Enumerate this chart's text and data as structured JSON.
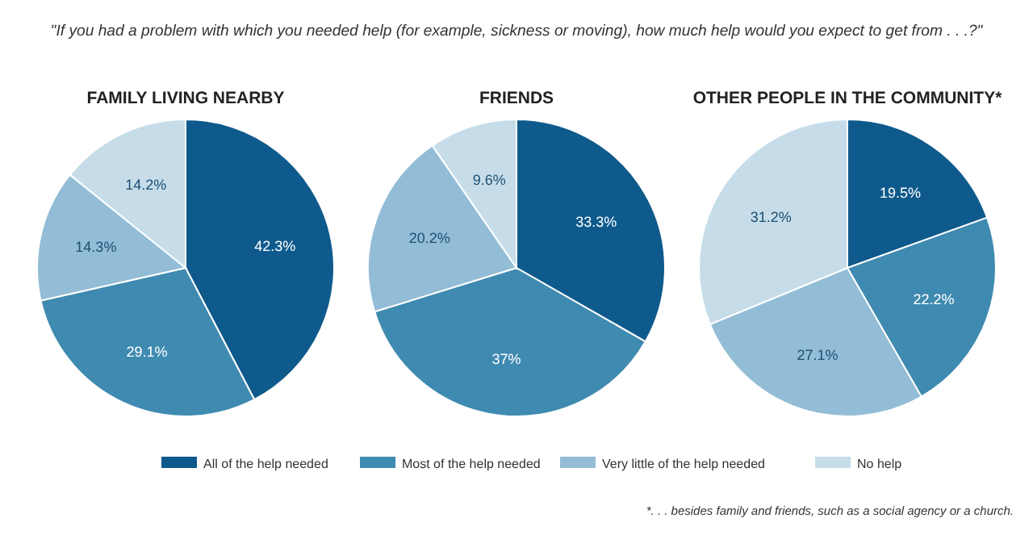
{
  "chart_data": [
    {
      "type": "pie",
      "title": "FAMILY LIVING NEARBY",
      "annotations": [
        "\"If you had a problem with which you needed help (for example, sickness or moving), how much help would you expect to get from . . .?\""
      ],
      "categories": [
        "All of the help needed",
        "Most of the help needed",
        "Very little of the help needed",
        "No help"
      ],
      "values": [
        42.3,
        29.1,
        14.3,
        14.2
      ],
      "value_labels": [
        "42.3%",
        "29.1%",
        "14.3%",
        "14.2%"
      ],
      "colors": [
        "#0f5a8c",
        "#3f8ab0",
        "#93bdd6",
        "#c6dde9"
      ],
      "legend": "bottom"
    },
    {
      "type": "pie",
      "title": "FRIENDS",
      "categories": [
        null,
        null,
        null,
        null
      ],
      "values": [
        33.3,
        37,
        20.2,
        9.6
      ],
      "value_labels": [
        "33.3%",
        "37%",
        "20.2%",
        "9.6%"
      ],
      "colors": [
        "#0f5a8c",
        "#3f8ab0",
        "#93bdd6",
        "#c6dde9"
      ]
    },
    {
      "type": "pie",
      "title": "OTHER PEOPLE IN THE COMMUNITY*",
      "annotations": [
        "*. . . besides family and friends, such as a social agency or a church."
      ],
      "categories": [
        null,
        null,
        null,
        null
      ],
      "values": [
        19.5,
        22.2,
        27.1,
        31.2
      ],
      "value_labels": [
        "19.5%",
        "22.2%",
        "27.1%",
        "31.2%"
      ],
      "colors": [
        "#0f5a8c",
        "#3f8ab0",
        "#93bdd6",
        "#c6dde9"
      ]
    }
  ]
}
